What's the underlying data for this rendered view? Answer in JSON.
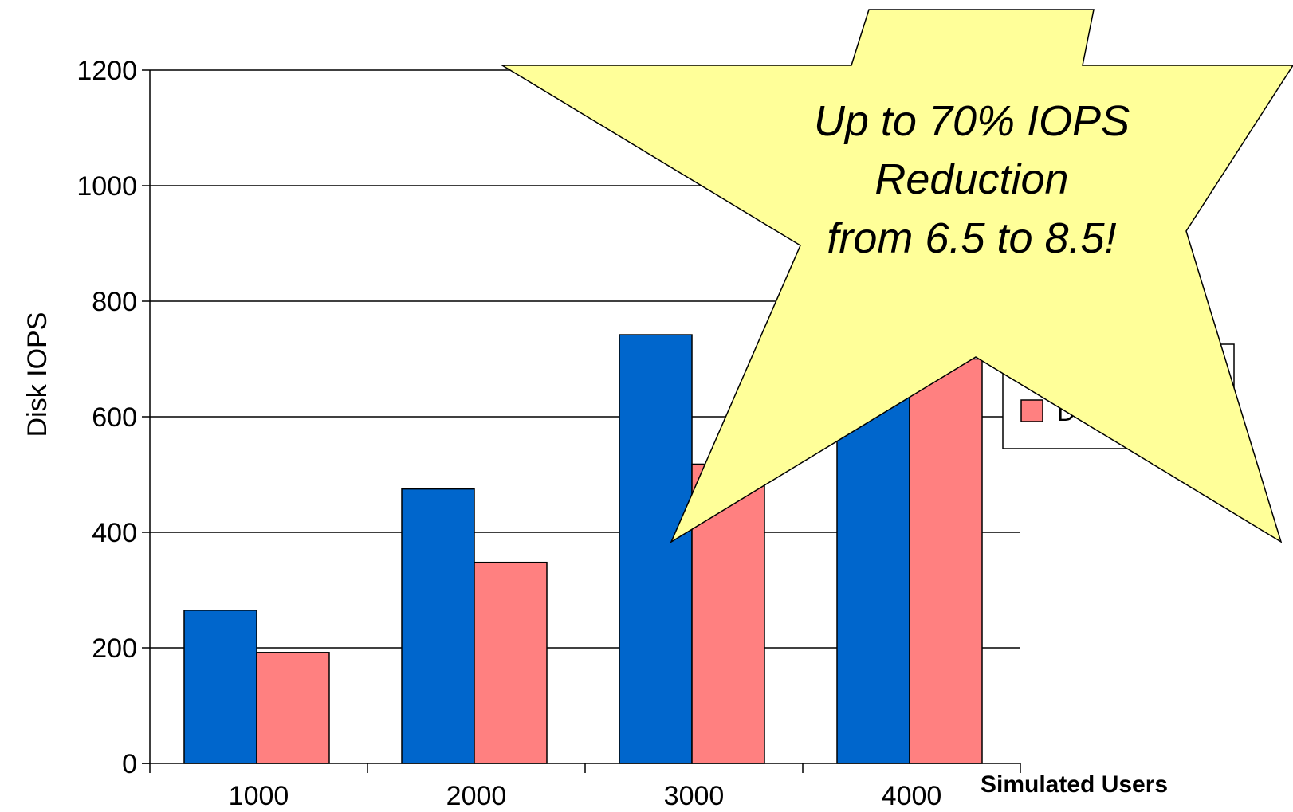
{
  "heading_fragment": "",
  "chart_data": {
    "type": "bar",
    "categories": [
      "1000",
      "2000",
      "3000",
      "4000"
    ],
    "series": [
      {
        "name": "",
        "color": "#0066cc",
        "values": [
          265,
          475,
          742,
          660
        ]
      },
      {
        "name": "",
        "color": "#ff8080",
        "values": [
          192,
          348,
          518,
          700
        ]
      }
    ],
    "title": "",
    "xlabel": "Simulated Users",
    "ylabel": "Disk IOPS",
    "ylim": [
      0,
      1200
    ],
    "yticks": [
      "0",
      "200",
      "400",
      "600",
      "800",
      "1000",
      "1200"
    ],
    "ytick_values": [
      0,
      200,
      400,
      600,
      800,
      1000,
      1200
    ],
    "grid": true,
    "legend_position": "right",
    "legend_visible_fragment": "D",
    "annotation": {
      "shape": "star",
      "fill_color": "#ffff99",
      "lines": [
        "Up to 70% IOPS",
        "Reduction",
        "from 6.5 to 8.5!"
      ]
    }
  }
}
